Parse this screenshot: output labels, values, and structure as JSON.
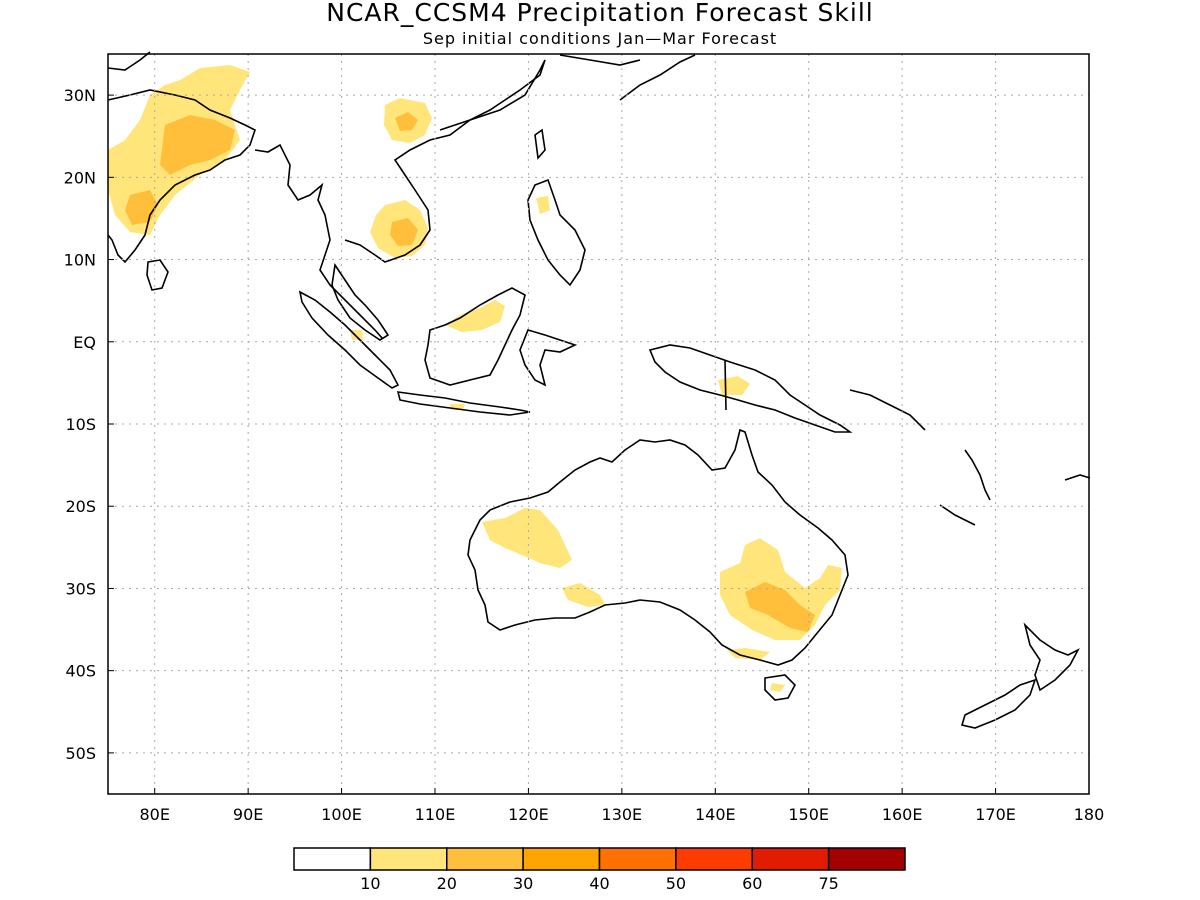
{
  "title": "NCAR_CCSM4 Precipitation Forecast Skill",
  "subtitle": "Sep initial conditions  Jan—Mar Forecast",
  "map": {
    "lon_range": [
      75,
      180
    ],
    "lat_range": [
      -55,
      35
    ],
    "x_ticks": [
      "80E",
      "90E",
      "100E",
      "110E",
      "120E",
      "130E",
      "140E",
      "150E",
      "160E",
      "170E",
      "180"
    ],
    "y_ticks": [
      "30N",
      "20N",
      "10N",
      "EQ",
      "10S",
      "20S",
      "30S",
      "40S",
      "50S"
    ],
    "grid": "dotted"
  },
  "legend": {
    "colors": [
      "#ffffff",
      "#ffe57a",
      "#ffbf3b",
      "#ffa400",
      "#ff7000",
      "#ff3c00",
      "#e11c00",
      "#a50000"
    ],
    "labels": [
      "10",
      "20",
      "30",
      "40",
      "50",
      "60",
      "75"
    ]
  },
  "skill_regions": [
    {
      "name": "india",
      "level": 1
    },
    {
      "name": "south-china",
      "level": 1
    },
    {
      "name": "indochina",
      "level": 1
    },
    {
      "name": "borneo",
      "level": 1
    },
    {
      "name": "western-australia",
      "level": 1
    },
    {
      "name": "eastern-australia",
      "level": 1
    },
    {
      "name": "south-australia",
      "level": 1
    }
  ]
}
